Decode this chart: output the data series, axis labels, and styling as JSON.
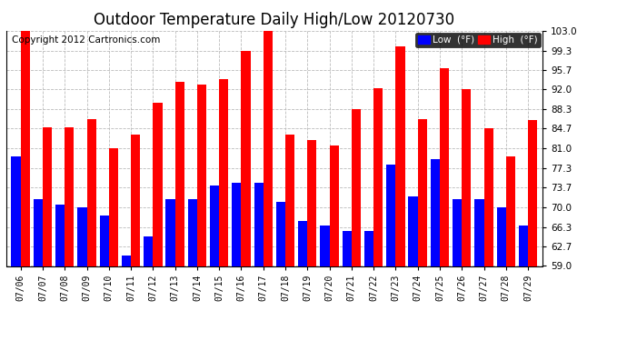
{
  "title": "Outdoor Temperature Daily High/Low 20120730",
  "copyright": "Copyright 2012 Cartronics.com",
  "legend_low": "Low  (°F)",
  "legend_high": "High  (°F)",
  "dates": [
    "07/06",
    "07/07",
    "07/08",
    "07/09",
    "07/10",
    "07/11",
    "07/12",
    "07/13",
    "07/14",
    "07/15",
    "07/16",
    "07/17",
    "07/18",
    "07/19",
    "07/20",
    "07/21",
    "07/22",
    "07/23",
    "07/24",
    "07/25",
    "07/26",
    "07/27",
    "07/28",
    "07/29"
  ],
  "highs": [
    103.0,
    85.0,
    85.0,
    86.5,
    81.0,
    83.5,
    89.5,
    93.5,
    93.0,
    94.0,
    99.3,
    103.0,
    83.5,
    82.5,
    81.5,
    88.3,
    92.3,
    100.0,
    86.5,
    96.0,
    92.0,
    84.7,
    79.5,
    86.3
  ],
  "lows": [
    79.5,
    71.5,
    70.5,
    70.0,
    68.5,
    61.0,
    64.5,
    71.5,
    71.5,
    74.0,
    74.5,
    74.5,
    71.0,
    67.5,
    66.5,
    65.5,
    65.5,
    78.0,
    72.0,
    79.0,
    71.5,
    71.5,
    70.0,
    66.5
  ],
  "yticks": [
    59.0,
    62.7,
    66.3,
    70.0,
    73.7,
    77.3,
    81.0,
    84.7,
    88.3,
    92.0,
    95.7,
    99.3,
    103.0
  ],
  "ymin": 59.0,
  "ymax": 103.0,
  "bar_color_high": "#ff0000",
  "bar_color_low": "#0000ff",
  "background_color": "#ffffff",
  "grid_color": "#bbbbbb",
  "title_fontsize": 12,
  "copyright_fontsize": 7.5
}
